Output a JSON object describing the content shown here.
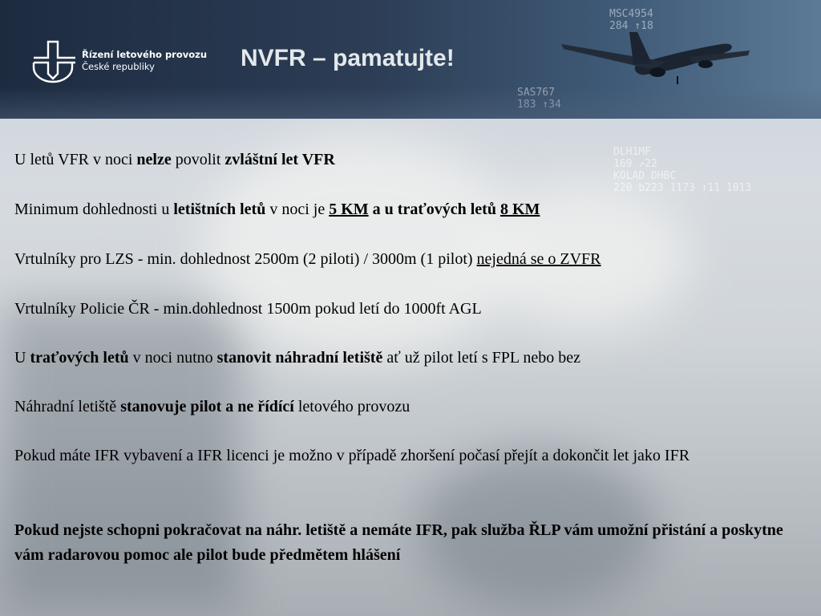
{
  "header": {
    "logo_line1": "Řízení letového provozu",
    "logo_line2": "České republiky",
    "title": "NVFR – pamatujte!",
    "radar_label_top": "MSC4954\n284 ↑18",
    "radar_label_mid": "SAS767\n183 ↑34",
    "radar_label_right": "DLH1MF\n169 ↗22\nKOLAD DHBC\n220 b223 1173 ↑11 1013"
  },
  "paragraphs": [
    [
      {
        "t": "U letů VFR v noci "
      },
      {
        "t": "nelze",
        "b": true
      },
      {
        "t": " povolit "
      },
      {
        "t": "zvláštní let VFR",
        "b": true
      }
    ],
    [
      {
        "t": "Minimum dohlednosti u "
      },
      {
        "t": "letištních letů",
        "b": true
      },
      {
        "t": " v noci je  "
      },
      {
        "t": "5 KM",
        "b": true,
        "u": true
      },
      {
        "t": " a u traťových letů ",
        "b": true
      },
      {
        "t": "8 KM",
        "b": true,
        "u": true
      }
    ],
    [
      {
        "t": "Vrtulníky pro LZS - min. dohlednost 2500m (2 piloti) / 3000m (1 pilot) "
      },
      {
        "t": "nejedná se o ZVFR",
        "u": true
      }
    ],
    [
      {
        "t": "Vrtulníky Policie ČR - min.dohlednost 1500m pokud letí do 1000ft AGL"
      }
    ],
    [
      {
        "t": "U "
      },
      {
        "t": "traťových letů",
        "b": true
      },
      {
        "t": " v noci nutno "
      },
      {
        "t": "stanovit náhradní letiště",
        "b": true
      },
      {
        "t": " ať už pilot letí s FPL nebo bez"
      }
    ],
    [
      {
        "t": "Náhradní letiště "
      },
      {
        "t": "stanovuje pilot a ne řídící",
        "b": true
      },
      {
        "t": " letového provozu"
      }
    ],
    [
      {
        "t": "Pokud máte IFR vybavení a IFR licenci je možno v případě zhoršení počasí přejít a dokončit let jako IFR"
      }
    ],
    [
      {
        "t": "Pokud nejste schopni pokračovat na náhr. letiště a nemáte IFR, pak služba ŘLP  vám umožní přistání a poskytne vám radarovou pomoc ale pilot bude předmětem hlášení",
        "b": true
      }
    ]
  ]
}
